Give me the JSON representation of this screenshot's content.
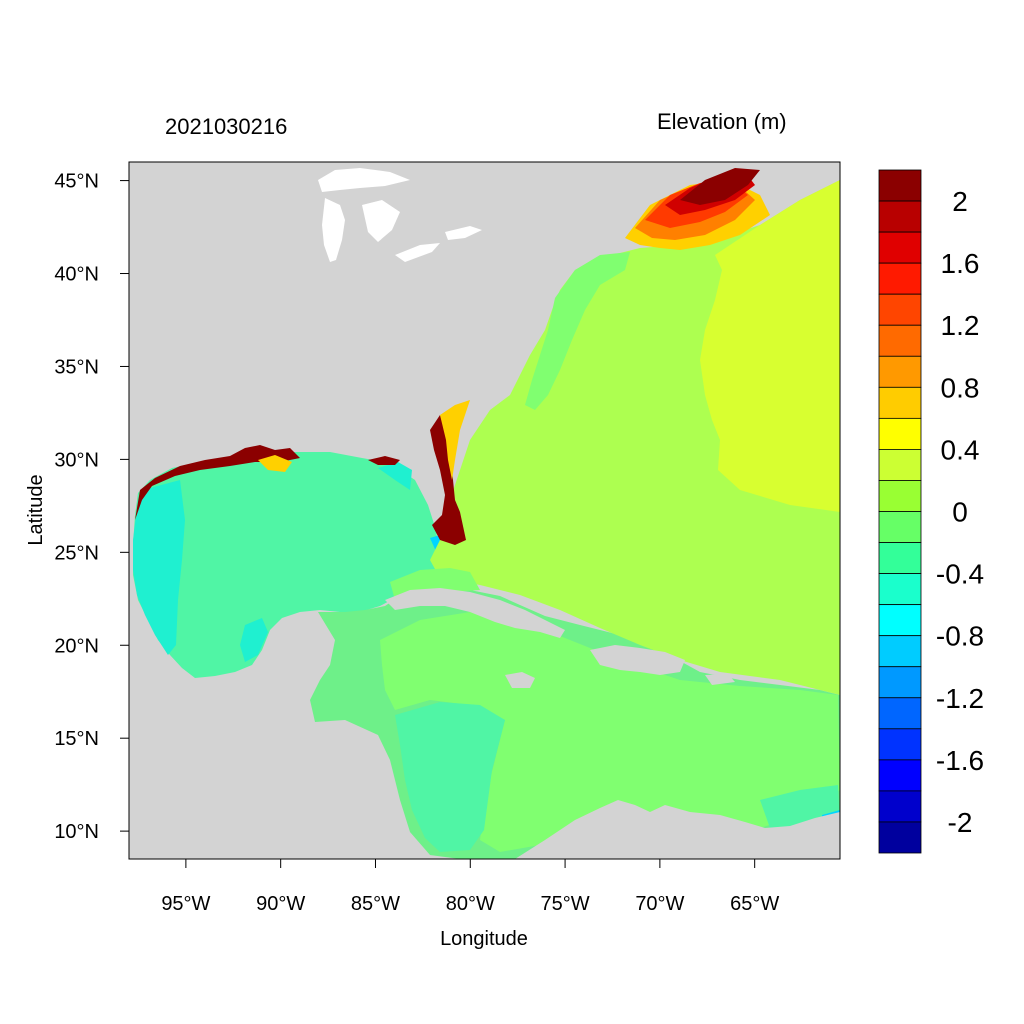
{
  "figure": {
    "timestamp": "2021030216",
    "variable_title": "Elevation (m)",
    "xlabel": "Longitude",
    "ylabel": "Latitude",
    "lon_range": [
      -98,
      -60.5
    ],
    "lat_range": [
      8.5,
      46
    ],
    "x_ticks": [
      {
        "value": -95,
        "label": "95°W"
      },
      {
        "value": -90,
        "label": "90°W"
      },
      {
        "value": -85,
        "label": "85°W"
      },
      {
        "value": -80,
        "label": "80°W"
      },
      {
        "value": -75,
        "label": "75°W"
      },
      {
        "value": -70,
        "label": "70°W"
      },
      {
        "value": -65,
        "label": "65°W"
      }
    ],
    "y_ticks": [
      {
        "value": 45,
        "label": "45°N"
      },
      {
        "value": 40,
        "label": "40°N"
      },
      {
        "value": 35,
        "label": "35°N"
      },
      {
        "value": 30,
        "label": "30°N"
      },
      {
        "value": 25,
        "label": "25°N"
      },
      {
        "value": 20,
        "label": "20°N"
      },
      {
        "value": 15,
        "label": "15°N"
      },
      {
        "value": 10,
        "label": "10°N"
      }
    ]
  },
  "colorbar": {
    "colors_top_to_bottom": [
      "#8b0000",
      "#b80000",
      "#e00000",
      "#ff1a00",
      "#ff4500",
      "#ff6a00",
      "#ff9900",
      "#ffcc00",
      "#ffff00",
      "#ccff33",
      "#99ff33",
      "#66ff66",
      "#33ff99",
      "#1affcc",
      "#00ffff",
      "#00ccff",
      "#0099ff",
      "#0066ff",
      "#0033ff",
      "#0000ff",
      "#0000cc",
      "#00009e"
    ],
    "labels": [
      "2",
      "1.6",
      "1.2",
      "0.8",
      "0.4",
      "0",
      "-0.4",
      "-0.8",
      "-1.2",
      "-1.6",
      "-2"
    ]
  },
  "map_colors": {
    "land": "#d3d3d3",
    "lakes": "#ffffff",
    "elev_neg04": "#50f5a5",
    "elev_neg02": "#6ef089",
    "elev_0": "#80ff70",
    "elev_02": "#adff50",
    "elev_04": "#d8ff30",
    "elev_06": "#ffd000",
    "elev_10": "#ff8000",
    "elev_14": "#ff3a00",
    "elev_18": "#d00000",
    "elev_22": "#8b0000",
    "elev_cyan": "#1ff0d0",
    "elev_blue": "#00d5ff"
  }
}
